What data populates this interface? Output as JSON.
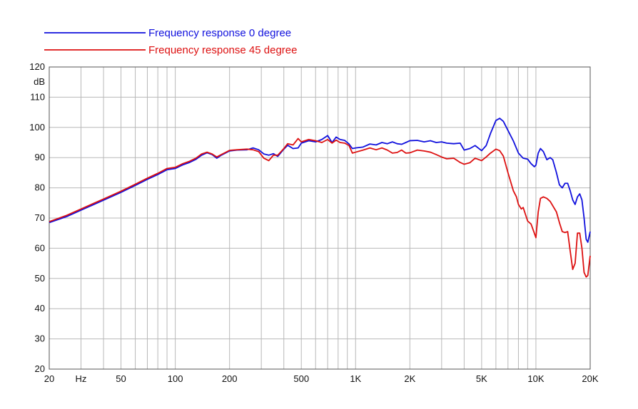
{
  "chart_data": {
    "type": "line",
    "xscale": "log",
    "xlim": [
      20,
      20000
    ],
    "ylim": [
      20,
      120
    ],
    "ylabel": "dB",
    "xlabel_unit": "Hz",
    "x_tick_labels": [
      {
        "value": 20,
        "label": "20"
      },
      {
        "value": 30,
        "label": "Hz"
      },
      {
        "value": 50,
        "label": "50"
      },
      {
        "value": 100,
        "label": "100"
      },
      {
        "value": 200,
        "label": "200"
      },
      {
        "value": 500,
        "label": "500"
      },
      {
        "value": 1000,
        "label": "1K"
      },
      {
        "value": 2000,
        "label": "2K"
      },
      {
        "value": 5000,
        "label": "5K"
      },
      {
        "value": 10000,
        "label": "10K"
      },
      {
        "value": 20000,
        "label": "20K"
      }
    ],
    "y_ticks": [
      20,
      30,
      40,
      50,
      60,
      70,
      80,
      90,
      100,
      110,
      120
    ],
    "grid": true,
    "legend_position": "top-left",
    "series": [
      {
        "name": "Frequency response 0 degree",
        "color": "#1010dd",
        "points": [
          [
            20,
            68.5
          ],
          [
            25,
            70.5
          ],
          [
            30,
            72.6
          ],
          [
            40,
            75.9
          ],
          [
            50,
            78.5
          ],
          [
            60,
            80.8
          ],
          [
            70,
            82.8
          ],
          [
            80,
            84.4
          ],
          [
            90,
            86.0
          ],
          [
            100,
            86.4
          ],
          [
            110,
            87.6
          ],
          [
            120,
            88.4
          ],
          [
            130,
            89.4
          ],
          [
            140,
            90.8
          ],
          [
            150,
            91.6
          ],
          [
            160,
            91.0
          ],
          [
            170,
            89.8
          ],
          [
            180,
            90.8
          ],
          [
            200,
            92.2
          ],
          [
            220,
            92.5
          ],
          [
            250,
            92.6
          ],
          [
            270,
            93.2
          ],
          [
            290,
            92.6
          ],
          [
            310,
            91.2
          ],
          [
            330,
            90.8
          ],
          [
            350,
            91.3
          ],
          [
            370,
            90.4
          ],
          [
            400,
            92.8
          ],
          [
            420,
            94.1
          ],
          [
            450,
            93.0
          ],
          [
            480,
            93.2
          ],
          [
            500,
            94.8
          ],
          [
            550,
            95.6
          ],
          [
            600,
            95.2
          ],
          [
            650,
            96.0
          ],
          [
            700,
            97.3
          ],
          [
            740,
            95.0
          ],
          [
            780,
            96.8
          ],
          [
            820,
            96.0
          ],
          [
            870,
            95.7
          ],
          [
            920,
            94.5
          ],
          [
            960,
            93.0
          ],
          [
            1000,
            93.2
          ],
          [
            1100,
            93.5
          ],
          [
            1200,
            94.5
          ],
          [
            1300,
            94.2
          ],
          [
            1400,
            95.0
          ],
          [
            1500,
            94.6
          ],
          [
            1600,
            95.2
          ],
          [
            1700,
            94.6
          ],
          [
            1800,
            94.4
          ],
          [
            1900,
            95.0
          ],
          [
            2000,
            95.6
          ],
          [
            2200,
            95.7
          ],
          [
            2400,
            95.2
          ],
          [
            2600,
            95.6
          ],
          [
            2800,
            95.0
          ],
          [
            3000,
            95.2
          ],
          [
            3200,
            94.8
          ],
          [
            3500,
            94.6
          ],
          [
            3800,
            94.8
          ],
          [
            4000,
            92.5
          ],
          [
            4300,
            93.0
          ],
          [
            4600,
            94.0
          ],
          [
            5000,
            92.3
          ],
          [
            5300,
            94.0
          ],
          [
            5600,
            98.0
          ],
          [
            6000,
            102.3
          ],
          [
            6300,
            103.0
          ],
          [
            6600,
            102.0
          ],
          [
            7000,
            99.0
          ],
          [
            7500,
            95.5
          ],
          [
            8000,
            91.5
          ],
          [
            8500,
            89.8
          ],
          [
            9000,
            89.5
          ],
          [
            9400,
            88.0
          ],
          [
            9800,
            87.0
          ],
          [
            10000,
            87.5
          ],
          [
            10300,
            91.5
          ],
          [
            10600,
            93.0
          ],
          [
            11000,
            92.0
          ],
          [
            11500,
            89.3
          ],
          [
            12000,
            90.0
          ],
          [
            12400,
            89.3
          ],
          [
            13000,
            85.0
          ],
          [
            13500,
            81.0
          ],
          [
            14000,
            80.0
          ],
          [
            14500,
            81.5
          ],
          [
            15000,
            81.5
          ],
          [
            15500,
            79.0
          ],
          [
            16000,
            76.0
          ],
          [
            16500,
            74.5
          ],
          [
            17000,
            77.0
          ],
          [
            17500,
            78.0
          ],
          [
            18000,
            76.0
          ],
          [
            18500,
            70.0
          ],
          [
            19000,
            63.0
          ],
          [
            19400,
            62.0
          ],
          [
            20000,
            65.5
          ]
        ]
      },
      {
        "name": "Frequency response 45 degree",
        "color": "#dd1010",
        "points": [
          [
            20,
            68.8
          ],
          [
            25,
            70.9
          ],
          [
            30,
            73.0
          ],
          [
            40,
            76.3
          ],
          [
            50,
            78.9
          ],
          [
            60,
            81.2
          ],
          [
            70,
            83.2
          ],
          [
            80,
            84.8
          ],
          [
            90,
            86.4
          ],
          [
            100,
            86.8
          ],
          [
            110,
            88.0
          ],
          [
            120,
            88.8
          ],
          [
            130,
            89.8
          ],
          [
            140,
            91.2
          ],
          [
            150,
            91.8
          ],
          [
            160,
            91.2
          ],
          [
            170,
            90.2
          ],
          [
            180,
            91.0
          ],
          [
            200,
            92.4
          ],
          [
            220,
            92.6
          ],
          [
            250,
            92.8
          ],
          [
            270,
            92.6
          ],
          [
            290,
            92.0
          ],
          [
            310,
            89.8
          ],
          [
            330,
            89.0
          ],
          [
            350,
            90.8
          ],
          [
            370,
            90.8
          ],
          [
            400,
            93.0
          ],
          [
            420,
            94.6
          ],
          [
            450,
            94.2
          ],
          [
            480,
            96.3
          ],
          [
            500,
            95.2
          ],
          [
            550,
            96.0
          ],
          [
            600,
            95.6
          ],
          [
            650,
            95.0
          ],
          [
            700,
            96.0
          ],
          [
            740,
            94.8
          ],
          [
            780,
            95.8
          ],
          [
            820,
            95.0
          ],
          [
            870,
            94.8
          ],
          [
            920,
            94.0
          ],
          [
            960,
            91.5
          ],
          [
            1000,
            91.8
          ],
          [
            1100,
            92.5
          ],
          [
            1200,
            93.2
          ],
          [
            1300,
            92.6
          ],
          [
            1400,
            93.2
          ],
          [
            1500,
            92.5
          ],
          [
            1600,
            91.5
          ],
          [
            1700,
            91.7
          ],
          [
            1800,
            92.5
          ],
          [
            1900,
            91.5
          ],
          [
            2000,
            91.6
          ],
          [
            2200,
            92.5
          ],
          [
            2400,
            92.2
          ],
          [
            2600,
            91.8
          ],
          [
            2800,
            91.0
          ],
          [
            3000,
            90.2
          ],
          [
            3200,
            89.6
          ],
          [
            3500,
            89.8
          ],
          [
            3800,
            88.4
          ],
          [
            4000,
            87.8
          ],
          [
            4300,
            88.3
          ],
          [
            4600,
            89.8
          ],
          [
            5000,
            89.0
          ],
          [
            5300,
            90.2
          ],
          [
            5600,
            91.5
          ],
          [
            6000,
            92.8
          ],
          [
            6300,
            92.3
          ],
          [
            6600,
            90.5
          ],
          [
            7000,
            85.0
          ],
          [
            7500,
            79.0
          ],
          [
            7800,
            77.0
          ],
          [
            8000,
            74.5
          ],
          [
            8300,
            73.0
          ],
          [
            8500,
            73.5
          ],
          [
            9000,
            69.0
          ],
          [
            9400,
            68.0
          ],
          [
            9800,
            65.0
          ],
          [
            10000,
            63.5
          ],
          [
            10300,
            72.0
          ],
          [
            10600,
            76.5
          ],
          [
            11000,
            77.0
          ],
          [
            11500,
            76.5
          ],
          [
            12000,
            75.5
          ],
          [
            13000,
            72.0
          ],
          [
            13500,
            68.5
          ],
          [
            14000,
            65.5
          ],
          [
            14500,
            65.2
          ],
          [
            15000,
            65.5
          ],
          [
            15500,
            59.0
          ],
          [
            16000,
            53.0
          ],
          [
            16500,
            55.0
          ],
          [
            17000,
            65.0
          ],
          [
            17500,
            65.0
          ],
          [
            18000,
            60.0
          ],
          [
            18500,
            52.0
          ],
          [
            19000,
            50.5
          ],
          [
            19400,
            51.0
          ],
          [
            20000,
            57.5
          ]
        ]
      }
    ]
  }
}
